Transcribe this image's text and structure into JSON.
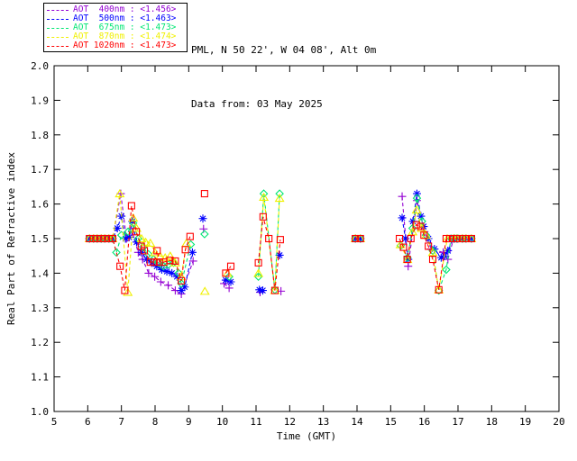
{
  "header": {
    "line1": "PML, N 50 22', W 04 08', Alt 0m",
    "line2": "Data from: 03 May 2025"
  },
  "legend": {
    "items": [
      {
        "name": "aot-400nm",
        "label": "AOT  400nm : <1.456>",
        "color": "#9400d3"
      },
      {
        "name": "aot-500nm",
        "label": "AOT  500nm : <1.463>",
        "color": "#0000ff"
      },
      {
        "name": "aot-675nm",
        "label": "AOT  675nm : <1.473>",
        "color": "#00e673"
      },
      {
        "name": "aot-870nm",
        "label": "AOT  870nm : <1.474>",
        "color": "#f0f000"
      },
      {
        "name": "aot-1020nm",
        "label": "AOT 1020nm : <1.473>",
        "color": "#ff0000"
      }
    ]
  },
  "chart_data": {
    "type": "line",
    "title": "",
    "xlabel": "Time (GMT)",
    "ylabel": "Real Part of Refractive index",
    "xlim": [
      5,
      20
    ],
    "ylim": [
      1.0,
      2.0
    ],
    "grid": false,
    "legend_position": "top-left-outside",
    "xticks": [
      {
        "value": 5,
        "label": "5"
      },
      {
        "value": 6,
        "label": "6"
      },
      {
        "value": 7,
        "label": "7"
      },
      {
        "value": 8,
        "label": "8"
      },
      {
        "value": 9,
        "label": "9"
      },
      {
        "value": 10,
        "label": "10"
      },
      {
        "value": 11,
        "label": "11"
      },
      {
        "value": 12,
        "label": "12"
      },
      {
        "value": 13,
        "label": "13"
      },
      {
        "value": 14,
        "label": "14"
      },
      {
        "value": 15,
        "label": "15"
      },
      {
        "value": 16,
        "label": "16"
      },
      {
        "value": 17,
        "label": "17"
      },
      {
        "value": 18,
        "label": "18"
      },
      {
        "value": 19,
        "label": "19"
      },
      {
        "value": 20,
        "label": "20"
      }
    ],
    "yticks": [
      {
        "value": 1.0,
        "label": "1.0"
      },
      {
        "value": 1.1,
        "label": "1.1"
      },
      {
        "value": 1.2,
        "label": "1.2"
      },
      {
        "value": 1.3,
        "label": "1.3"
      },
      {
        "value": 1.4,
        "label": "1.4"
      },
      {
        "value": 1.5,
        "label": "1.5"
      },
      {
        "value": 1.6,
        "label": "1.6"
      },
      {
        "value": 1.7,
        "label": "1.7"
      },
      {
        "value": 1.8,
        "label": "1.8"
      },
      {
        "value": 1.9,
        "label": "1.9"
      },
      {
        "value": 2.0,
        "label": "2.0"
      }
    ],
    "series": [
      {
        "name": "AOT 400nm",
        "mean": "<1.456>",
        "color": "#9400d3",
        "marker": "plus",
        "segments": [
          [
            [
              6.05,
              1.5
            ],
            [
              6.17,
              1.5
            ],
            [
              6.28,
              1.5
            ],
            [
              6.4,
              1.5
            ],
            [
              6.51,
              1.5
            ],
            [
              6.63,
              1.5
            ],
            [
              6.74,
              1.5
            ],
            [
              6.98,
              1.63
            ],
            [
              7.15,
              1.5
            ],
            [
              7.32,
              1.52
            ],
            [
              7.5,
              1.46
            ],
            [
              7.63,
              1.44
            ],
            [
              7.81,
              1.4
            ],
            [
              7.99,
              1.39
            ],
            [
              8.17,
              1.375
            ],
            [
              8.39,
              1.365
            ],
            [
              8.6,
              1.35
            ],
            [
              8.78,
              1.34
            ],
            [
              9.13,
              1.435
            ]
          ],
          [
            [
              9.44,
              1.528
            ]
          ],
          [
            [
              10.05,
              1.37
            ],
            [
              10.2,
              1.357
            ]
          ],
          [
            [
              11.12,
              1.345
            ]
          ],
          [
            [
              11.74,
              1.348
            ]
          ],
          [
            [
              13.95,
              1.5
            ],
            [
              14.1,
              1.5
            ]
          ],
          [
            [
              15.34,
              1.622
            ],
            [
              15.52,
              1.42
            ],
            [
              15.78,
              1.61
            ],
            [
              16.0,
              1.52
            ],
            [
              16.2,
              1.47
            ],
            [
              16.56,
              1.46
            ],
            [
              16.7,
              1.44
            ],
            [
              16.87,
              1.5
            ],
            [
              16.97,
              1.5
            ],
            [
              17.13,
              1.5
            ],
            [
              17.24,
              1.5
            ],
            [
              17.4,
              1.5
            ]
          ]
        ]
      },
      {
        "name": "AOT 500nm",
        "mean": "<1.463>",
        "color": "#0000ff",
        "marker": "asterisk",
        "segments": [
          [
            [
              6.05,
              1.5
            ],
            [
              6.17,
              1.5
            ],
            [
              6.28,
              1.5
            ],
            [
              6.4,
              1.5
            ],
            [
              6.51,
              1.5
            ],
            [
              6.63,
              1.5
            ],
            [
              6.74,
              1.5
            ],
            [
              6.88,
              1.53
            ],
            [
              7.0,
              1.565
            ],
            [
              7.12,
              1.5
            ],
            [
              7.23,
              1.504
            ],
            [
              7.32,
              1.55
            ],
            [
              7.45,
              1.49
            ],
            [
              7.6,
              1.46
            ],
            [
              7.75,
              1.44
            ],
            [
              7.9,
              1.43
            ],
            [
              8.05,
              1.42
            ],
            [
              8.2,
              1.41
            ],
            [
              8.35,
              1.405
            ],
            [
              8.5,
              1.4
            ],
            [
              8.65,
              1.39
            ],
            [
              8.78,
              1.35
            ],
            [
              8.88,
              1.36
            ],
            [
              9.11,
              1.46
            ]
          ],
          [
            [
              9.42,
              1.558
            ]
          ],
          [
            [
              10.1,
              1.38
            ],
            [
              10.25,
              1.375
            ]
          ],
          [
            [
              11.1,
              1.352
            ],
            [
              11.2,
              1.35
            ]
          ],
          [
            [
              11.7,
              1.452
            ]
          ],
          [
            [
              13.95,
              1.5
            ],
            [
              14.1,
              1.5
            ]
          ],
          [
            [
              15.34,
              1.56
            ],
            [
              15.44,
              1.5
            ],
            [
              15.52,
              1.44
            ],
            [
              15.66,
              1.55
            ],
            [
              15.78,
              1.63
            ],
            [
              15.9,
              1.565
            ],
            [
              15.98,
              1.535
            ],
            [
              16.12,
              1.5
            ],
            [
              16.3,
              1.47
            ],
            [
              16.5,
              1.445
            ],
            [
              16.6,
              1.45
            ],
            [
              16.7,
              1.465
            ],
            [
              16.87,
              1.5
            ],
            [
              16.97,
              1.5
            ],
            [
              17.13,
              1.5
            ],
            [
              17.24,
              1.5
            ],
            [
              17.4,
              1.5
            ]
          ]
        ]
      },
      {
        "name": "AOT 675nm",
        "mean": "<1.473>",
        "color": "#00e673",
        "marker": "diamond",
        "segments": [
          [
            [
              6.05,
              1.5
            ],
            [
              6.17,
              1.5
            ],
            [
              6.28,
              1.5
            ],
            [
              6.4,
              1.5
            ],
            [
              6.51,
              1.5
            ],
            [
              6.63,
              1.5
            ],
            [
              6.74,
              1.5
            ],
            [
              6.85,
              1.46
            ],
            [
              7.0,
              1.51
            ],
            [
              7.2,
              1.52
            ],
            [
              7.35,
              1.545
            ],
            [
              7.5,
              1.5
            ],
            [
              7.65,
              1.475
            ],
            [
              7.8,
              1.455
            ],
            [
              7.95,
              1.44
            ],
            [
              8.1,
              1.43
            ],
            [
              8.25,
              1.42
            ],
            [
              8.4,
              1.425
            ],
            [
              8.55,
              1.43
            ],
            [
              8.7,
              1.4
            ],
            [
              8.78,
              1.37
            ],
            [
              9.06,
              1.483
            ]
          ],
          [
            [
              9.47,
              1.513
            ]
          ],
          [
            [
              10.2,
              1.39
            ]
          ],
          [
            [
              11.07,
              1.39
            ],
            [
              11.23,
              1.63
            ],
            [
              11.56,
              1.352
            ],
            [
              11.7,
              1.63
            ]
          ],
          [
            [
              13.95,
              1.5
            ],
            [
              14.1,
              1.5
            ]
          ],
          [
            [
              15.3,
              1.48
            ],
            [
              15.5,
              1.445
            ],
            [
              15.65,
              1.53
            ],
            [
              15.78,
              1.617
            ],
            [
              15.93,
              1.55
            ],
            [
              16.05,
              1.51
            ],
            [
              16.25,
              1.465
            ],
            [
              16.43,
              1.35
            ],
            [
              16.65,
              1.41
            ],
            [
              16.79,
              1.5
            ],
            [
              16.9,
              1.5
            ],
            [
              17.0,
              1.5
            ],
            [
              17.13,
              1.5
            ],
            [
              17.24,
              1.5
            ],
            [
              17.4,
              1.5
            ]
          ]
        ]
      },
      {
        "name": "AOT 870nm",
        "mean": "<1.474>",
        "color": "#f0f000",
        "marker": "triangle",
        "segments": [
          [
            [
              6.05,
              1.5
            ],
            [
              6.17,
              1.5
            ],
            [
              6.28,
              1.5
            ],
            [
              6.4,
              1.5
            ],
            [
              6.51,
              1.5
            ],
            [
              6.63,
              1.5
            ],
            [
              6.74,
              1.5
            ],
            [
              6.95,
              1.63
            ],
            [
              7.19,
              1.345
            ],
            [
              7.35,
              1.56
            ],
            [
              7.45,
              1.53
            ],
            [
              7.6,
              1.5
            ],
            [
              7.72,
              1.49
            ],
            [
              7.86,
              1.487
            ],
            [
              8.0,
              1.46
            ],
            [
              8.15,
              1.45
            ],
            [
              8.3,
              1.445
            ],
            [
              8.45,
              1.45
            ],
            [
              8.6,
              1.43
            ],
            [
              8.78,
              1.39
            ],
            [
              8.93,
              1.487
            ]
          ],
          [
            [
              9.48,
              1.348
            ]
          ],
          [
            [
              10.15,
              1.4
            ]
          ],
          [
            [
              11.07,
              1.4
            ],
            [
              11.23,
              1.62
            ],
            [
              11.56,
              1.35
            ],
            [
              11.7,
              1.617
            ]
          ],
          [
            [
              13.95,
              1.5
            ],
            [
              14.1,
              1.5
            ]
          ],
          [
            [
              15.29,
              1.483
            ],
            [
              15.5,
              1.44
            ],
            [
              15.65,
              1.52
            ],
            [
              15.77,
              1.583
            ],
            [
              15.92,
              1.53
            ],
            [
              16.05,
              1.51
            ],
            [
              16.25,
              1.46
            ],
            [
              16.43,
              1.352
            ],
            [
              16.68,
              1.5
            ],
            [
              16.87,
              1.5
            ],
            [
              16.97,
              1.5
            ],
            [
              17.13,
              1.5
            ],
            [
              17.24,
              1.5
            ],
            [
              17.4,
              1.5
            ]
          ]
        ]
      },
      {
        "name": "AOT 1020nm",
        "mean": "<1.473>",
        "color": "#ff0000",
        "marker": "square",
        "segments": [
          [
            [
              6.05,
              1.5
            ],
            [
              6.17,
              1.5
            ],
            [
              6.28,
              1.5
            ],
            [
              6.4,
              1.5
            ],
            [
              6.51,
              1.5
            ],
            [
              6.63,
              1.5
            ],
            [
              6.74,
              1.5
            ],
            [
              6.96,
              1.42
            ],
            [
              7.1,
              1.35
            ],
            [
              7.3,
              1.595
            ],
            [
              7.44,
              1.52
            ],
            [
              7.59,
              1.478
            ],
            [
              7.68,
              1.465
            ],
            [
              7.86,
              1.432
            ],
            [
              7.97,
              1.432
            ],
            [
              8.06,
              1.465
            ],
            [
              8.13,
              1.432
            ],
            [
              8.26,
              1.432
            ],
            [
              8.44,
              1.437
            ],
            [
              8.6,
              1.435
            ],
            [
              8.78,
              1.378
            ],
            [
              8.9,
              1.468
            ],
            [
              9.04,
              1.506
            ]
          ],
          [
            [
              9.47,
              1.63
            ]
          ],
          [
            [
              10.1,
              1.4
            ],
            [
              10.25,
              1.42
            ]
          ],
          [
            [
              11.07,
              1.43
            ],
            [
              11.21,
              1.563
            ],
            [
              11.38,
              1.5
            ],
            [
              11.56,
              1.35
            ],
            [
              11.72,
              1.497
            ]
          ],
          [
            [
              13.95,
              1.5
            ],
            [
              14.1,
              1.5
            ]
          ],
          [
            [
              15.26,
              1.5
            ],
            [
              15.38,
              1.475
            ],
            [
              15.49,
              1.44
            ],
            [
              15.6,
              1.5
            ],
            [
              15.76,
              1.54
            ],
            [
              15.89,
              1.535
            ],
            [
              15.99,
              1.51
            ],
            [
              16.12,
              1.478
            ],
            [
              16.25,
              1.44
            ],
            [
              16.43,
              1.352
            ],
            [
              16.65,
              1.5
            ],
            [
              16.76,
              1.5
            ],
            [
              16.87,
              1.5
            ],
            [
              16.97,
              1.5
            ],
            [
              17.13,
              1.5
            ],
            [
              17.24,
              1.5
            ],
            [
              17.4,
              1.5
            ]
          ]
        ]
      }
    ]
  }
}
